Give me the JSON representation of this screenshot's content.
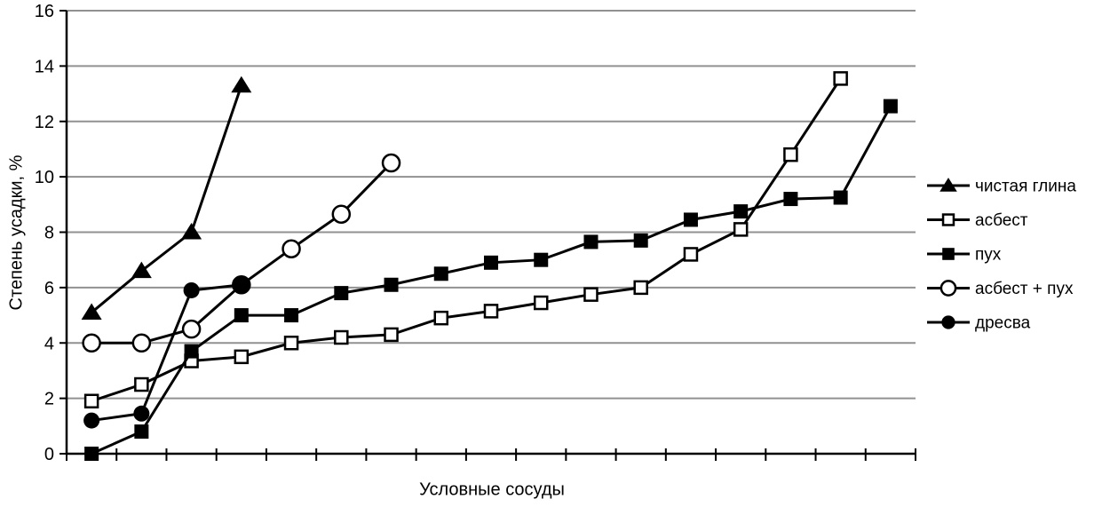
{
  "chart_data": {
    "type": "line",
    "title": "",
    "xlabel": "Условные сосуды",
    "ylabel": "Степень усадки, %",
    "ylim": [
      0,
      16
    ],
    "yticks": [
      0,
      2,
      4,
      6,
      8,
      10,
      12,
      14,
      16
    ],
    "x_categories_count": 17,
    "x_tick_labels": [],
    "grid": true,
    "legend_position": "right-middle",
    "series": [
      {
        "id": "chistaya-glina",
        "name": "чистая глина",
        "marker": "triangle-filled",
        "values": [
          5.1,
          6.6,
          8.0,
          13.3
        ]
      },
      {
        "id": "asbest",
        "name": "асбест",
        "marker": "square-open",
        "values": [
          1.9,
          2.5,
          3.35,
          3.5,
          4.0,
          4.2,
          4.3,
          4.9,
          5.15,
          5.45,
          5.75,
          6.0,
          7.2,
          8.1,
          10.8,
          13.55
        ]
      },
      {
        "id": "pukh",
        "name": "пух",
        "marker": "square-filled",
        "values": [
          0,
          0.8,
          3.7,
          5.0,
          5.0,
          5.8,
          6.1,
          6.5,
          6.9,
          7.0,
          7.65,
          7.7,
          8.45,
          8.75,
          9.2,
          9.25,
          12.55
        ]
      },
      {
        "id": "asbest-plus-pukh",
        "name": "асбест + пух",
        "marker": "circle-open",
        "values": [
          4.0,
          4.0,
          4.5,
          6.1,
          7.4,
          8.65,
          10.5
        ]
      },
      {
        "id": "dresva",
        "name": "дресва",
        "marker": "circle-filled",
        "values": [
          1.2,
          1.45,
          5.9,
          6.1
        ]
      }
    ],
    "colors": {
      "series": "#000000",
      "grid": "#919191",
      "background": "#ffffff",
      "text": "#000000"
    }
  }
}
